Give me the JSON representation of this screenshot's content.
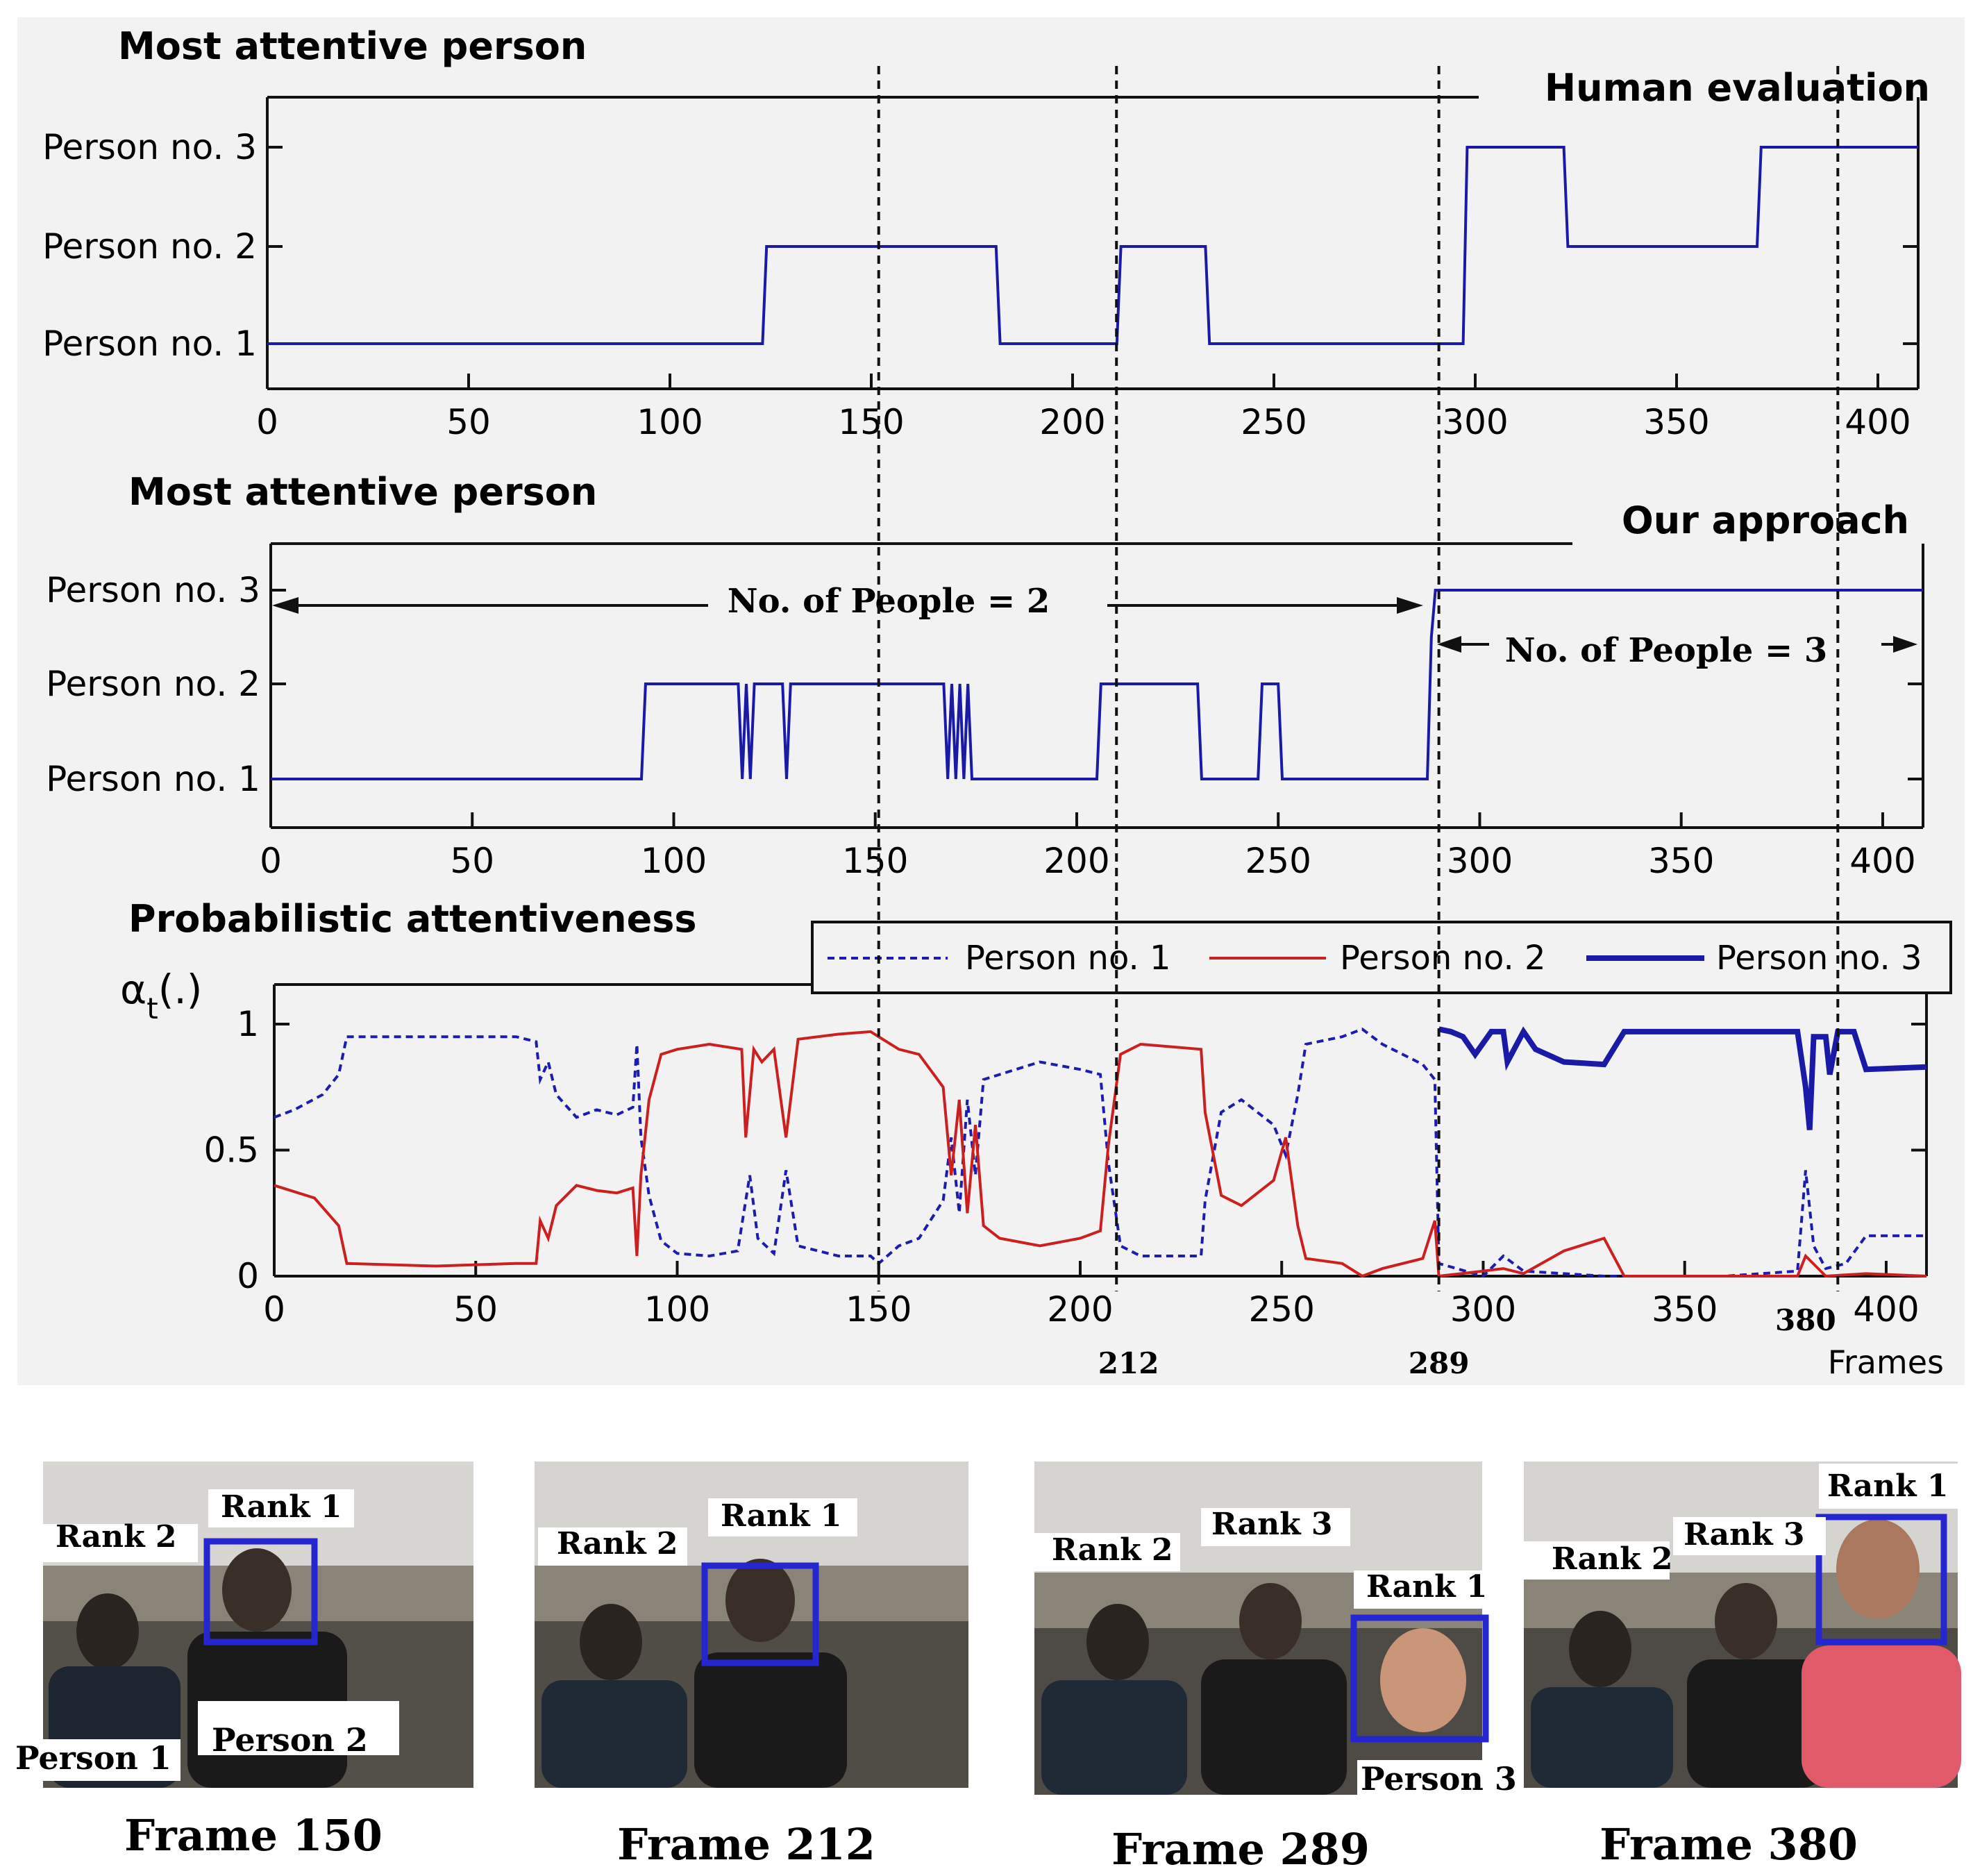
{
  "colors": {
    "panel_bg": "#f2f2f2",
    "blue": "#1a1aa6",
    "blue_dash": "#1c1cb0",
    "red": "#cc2020",
    "axis": "#111111"
  },
  "chart_data": [
    {
      "id": "human",
      "type": "line",
      "title": "Most attentive person",
      "label": "Human evaluation",
      "xlim": [
        0,
        410
      ],
      "xticks": [
        0,
        50,
        100,
        150,
        200,
        250,
        300,
        350,
        400
      ],
      "ylabels": [
        "Person no. 1",
        "Person no. 2",
        "Person no. 3"
      ],
      "steps": [
        [
          0,
          1
        ],
        [
          123,
          1
        ],
        [
          124,
          2
        ],
        [
          181,
          2
        ],
        [
          182,
          1
        ],
        [
          211,
          1
        ],
        [
          212,
          2
        ],
        [
          233,
          2
        ],
        [
          234,
          1
        ],
        [
          297,
          1
        ],
        [
          298,
          3
        ],
        [
          322,
          3
        ],
        [
          323,
          2
        ],
        [
          370,
          2
        ],
        [
          371,
          3
        ],
        [
          410,
          3
        ]
      ]
    },
    {
      "id": "ours",
      "type": "line",
      "title": "Most attentive person",
      "label": "Our approach",
      "xlim": [
        0,
        410
      ],
      "xticks": [
        0,
        50,
        100,
        150,
        200,
        250,
        300,
        350,
        400
      ],
      "ylabels": [
        "Person no. 1",
        "Person no. 2",
        "Person no. 3"
      ],
      "annotation_left": "No. of People = 2",
      "annotation_right": "No. of People = 3",
      "steps": [
        [
          0,
          1
        ],
        [
          92,
          1
        ],
        [
          93,
          2
        ],
        [
          116,
          2
        ],
        [
          117,
          1
        ],
        [
          118,
          2
        ],
        [
          119,
          1
        ],
        [
          120,
          2
        ],
        [
          127,
          2
        ],
        [
          128,
          1
        ],
        [
          129,
          2
        ],
        [
          167,
          2
        ],
        [
          168,
          1
        ],
        [
          169,
          2
        ],
        [
          170,
          1
        ],
        [
          171,
          2
        ],
        [
          172,
          1
        ],
        [
          173,
          2
        ],
        [
          174,
          1
        ],
        [
          205,
          1
        ],
        [
          206,
          2
        ],
        [
          230,
          2
        ],
        [
          231,
          1
        ],
        [
          245,
          1
        ],
        [
          246,
          2
        ],
        [
          250,
          2
        ],
        [
          251,
          1
        ],
        [
          287,
          1
        ],
        [
          288,
          2.5
        ],
        [
          289,
          3
        ],
        [
          410,
          3
        ]
      ]
    },
    {
      "id": "prob",
      "type": "line",
      "title": "Probabilistic attentiveness",
      "ylabel": "α",
      "ylabel_sub": "t",
      "ylabel_suffix": "(.)",
      "xlabel": "Frames",
      "xlim": [
        0,
        410
      ],
      "ylim": [
        0,
        1.2
      ],
      "xticks": [
        0,
        50,
        100,
        150,
        200,
        250,
        300,
        350,
        400
      ],
      "yticks": [
        0,
        0.5,
        1
      ],
      "ytick_labels": [
        "0",
        "0.5",
        "1"
      ],
      "extra_xlabels": [
        {
          "x": 212,
          "label": "212",
          "row": 2
        },
        {
          "x": 289,
          "label": "289",
          "row": 2
        },
        {
          "x": 380,
          "label": "380",
          "row": 1
        }
      ],
      "legend": [
        "Person no. 1",
        "Person no. 2",
        "Person no. 3"
      ],
      "series": [
        {
          "name": "Person no. 1",
          "style": "dashed",
          "points": [
            [
              0,
              0.63
            ],
            [
              5,
              0.66
            ],
            [
              12,
              0.72
            ],
            [
              16,
              0.8
            ],
            [
              18,
              0.95
            ],
            [
              40,
              0.95
            ],
            [
              60,
              0.95
            ],
            [
              65,
              0.93
            ],
            [
              66,
              0.78
            ],
            [
              68,
              0.85
            ],
            [
              70,
              0.72
            ],
            [
              75,
              0.63
            ],
            [
              80,
              0.66
            ],
            [
              85,
              0.64
            ],
            [
              89,
              0.67
            ],
            [
              90,
              0.92
            ],
            [
              91,
              0.55
            ],
            [
              93,
              0.32
            ],
            [
              96,
              0.14
            ],
            [
              100,
              0.09
            ],
            [
              108,
              0.08
            ],
            [
              115,
              0.1
            ],
            [
              118,
              0.4
            ],
            [
              120,
              0.15
            ],
            [
              124,
              0.09
            ],
            [
              127,
              0.42
            ],
            [
              130,
              0.12
            ],
            [
              140,
              0.08
            ],
            [
              148,
              0.08
            ],
            [
              150,
              0.05
            ],
            [
              155,
              0.12
            ],
            [
              160,
              0.15
            ],
            [
              166,
              0.3
            ],
            [
              168,
              0.55
            ],
            [
              170,
              0.25
            ],
            [
              172,
              0.7
            ],
            [
              174,
              0.4
            ],
            [
              176,
              0.78
            ],
            [
              180,
              0.8
            ],
            [
              190,
              0.85
            ],
            [
              200,
              0.82
            ],
            [
              205,
              0.8
            ],
            [
              207,
              0.45
            ],
            [
              210,
              0.12
            ],
            [
              215,
              0.08
            ],
            [
              230,
              0.08
            ],
            [
              231,
              0.3
            ],
            [
              235,
              0.65
            ],
            [
              240,
              0.7
            ],
            [
              248,
              0.6
            ],
            [
              251,
              0.48
            ],
            [
              254,
              0.72
            ],
            [
              256,
              0.92
            ],
            [
              265,
              0.95
            ],
            [
              270,
              0.98
            ],
            [
              275,
              0.92
            ],
            [
              285,
              0.84
            ],
            [
              288,
              0.78
            ],
            [
              289,
              0.05
            ],
            [
              300,
              0.0
            ],
            [
              305,
              0.08
            ],
            [
              310,
              0.02
            ],
            [
              320,
              0.01
            ],
            [
              330,
              0.0
            ],
            [
              360,
              0.0
            ],
            [
              378,
              0.02
            ],
            [
              380,
              0.42
            ],
            [
              382,
              0.12
            ],
            [
              385,
              0.03
            ],
            [
              390,
              0.05
            ],
            [
              395,
              0.16
            ],
            [
              410,
              0.16
            ]
          ]
        },
        {
          "name": "Person no. 2",
          "style": "solid",
          "points": [
            [
              0,
              0.36
            ],
            [
              10,
              0.31
            ],
            [
              16,
              0.2
            ],
            [
              18,
              0.05
            ],
            [
              40,
              0.04
            ],
            [
              60,
              0.05
            ],
            [
              65,
              0.05
            ],
            [
              66,
              0.22
            ],
            [
              68,
              0.15
            ],
            [
              70,
              0.28
            ],
            [
              75,
              0.36
            ],
            [
              80,
              0.34
            ],
            [
              85,
              0.33
            ],
            [
              89,
              0.35
            ],
            [
              90,
              0.08
            ],
            [
              91,
              0.4
            ],
            [
              93,
              0.7
            ],
            [
              96,
              0.88
            ],
            [
              100,
              0.9
            ],
            [
              108,
              0.92
            ],
            [
              116,
              0.9
            ],
            [
              117,
              0.55
            ],
            [
              119,
              0.9
            ],
            [
              121,
              0.85
            ],
            [
              124,
              0.9
            ],
            [
              127,
              0.55
            ],
            [
              130,
              0.94
            ],
            [
              140,
              0.96
            ],
            [
              148,
              0.97
            ],
            [
              150,
              0.95
            ],
            [
              155,
              0.9
            ],
            [
              160,
              0.88
            ],
            [
              166,
              0.75
            ],
            [
              168,
              0.4
            ],
            [
              170,
              0.7
            ],
            [
              172,
              0.25
            ],
            [
              174,
              0.6
            ],
            [
              176,
              0.2
            ],
            [
              180,
              0.15
            ],
            [
              190,
              0.12
            ],
            [
              200,
              0.15
            ],
            [
              205,
              0.18
            ],
            [
              207,
              0.52
            ],
            [
              210,
              0.88
            ],
            [
              215,
              0.92
            ],
            [
              230,
              0.9
            ],
            [
              231,
              0.65
            ],
            [
              235,
              0.32
            ],
            [
              240,
              0.28
            ],
            [
              248,
              0.38
            ],
            [
              251,
              0.55
            ],
            [
              254,
              0.2
            ],
            [
              256,
              0.07
            ],
            [
              265,
              0.05
            ],
            [
              270,
              0.0
            ],
            [
              275,
              0.03
            ],
            [
              285,
              0.07
            ],
            [
              288,
              0.22
            ],
            [
              289,
              0.0
            ],
            [
              300,
              0.02
            ],
            [
              305,
              0.03
            ],
            [
              310,
              0.01
            ],
            [
              320,
              0.1
            ],
            [
              330,
              0.15
            ],
            [
              335,
              0.0
            ],
            [
              360,
              0.0
            ],
            [
              378,
              0.0
            ],
            [
              380,
              0.08
            ],
            [
              385,
              0.0
            ],
            [
              395,
              0.01
            ],
            [
              410,
              0.0
            ]
          ]
        },
        {
          "name": "Person no. 3",
          "style": "solid_thick",
          "points": [
            [
              289,
              0.98
            ],
            [
              292,
              0.97
            ],
            [
              295,
              0.95
            ],
            [
              298,
              0.88
            ],
            [
              302,
              0.97
            ],
            [
              305,
              0.97
            ],
            [
              306,
              0.85
            ],
            [
              310,
              0.97
            ],
            [
              313,
              0.9
            ],
            [
              320,
              0.85
            ],
            [
              330,
              0.84
            ],
            [
              335,
              0.97
            ],
            [
              360,
              0.97
            ],
            [
              378,
              0.97
            ],
            [
              380,
              0.75
            ],
            [
              381,
              0.58
            ],
            [
              382,
              0.95
            ],
            [
              385,
              0.95
            ],
            [
              386,
              0.8
            ],
            [
              388,
              0.97
            ],
            [
              392,
              0.97
            ],
            [
              395,
              0.82
            ],
            [
              410,
              0.83
            ]
          ]
        }
      ]
    }
  ],
  "dashed_lines_frames": [
    150,
    209,
    289,
    388
  ],
  "frames": [
    {
      "caption": "Frame 150",
      "labels": [
        "Rank 2",
        "Rank 1",
        "Person 1",
        "Person 2"
      ]
    },
    {
      "caption": "Frame 212",
      "labels": [
        "Rank 2",
        "Rank 1"
      ]
    },
    {
      "caption": "Frame 289",
      "labels": [
        "Rank 2",
        "Rank 3",
        "Rank 1",
        "Person 3"
      ]
    },
    {
      "caption": "Frame 380",
      "labels": [
        "Rank 2",
        "Rank 3",
        "Rank 1"
      ]
    }
  ]
}
